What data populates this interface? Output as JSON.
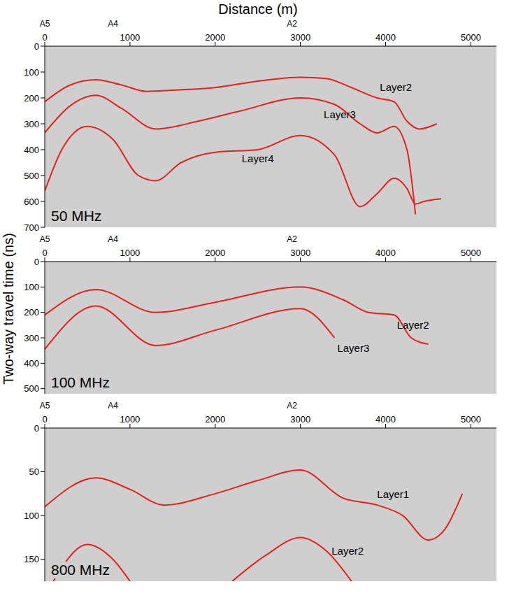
{
  "xlabel": "Distance (m)",
  "ylabel": "Two-way travel time (ns)",
  "chart_data": [
    {
      "type": "line",
      "title": "50 MHz",
      "xlim": [
        0,
        5300
      ],
      "xticks": [
        0,
        1000,
        2000,
        3000,
        4000,
        5000
      ],
      "ylim": [
        0,
        700
      ],
      "yticks": [
        0,
        100,
        200,
        300,
        400,
        500,
        600,
        700
      ],
      "grid": false,
      "stations": {
        "labels": [
          "A5",
          "A4",
          "A2"
        ],
        "x": [
          0,
          800,
          2900
        ]
      },
      "series": [
        {
          "name": "Layer2",
          "color": "#e8201c",
          "x": [
            0,
            300,
            600,
            900,
            1200,
            1500,
            2000,
            2500,
            3000,
            3300,
            3600,
            3900,
            4100,
            4250,
            4400,
            4600
          ],
          "values": [
            215,
            150,
            130,
            150,
            175,
            170,
            160,
            135,
            120,
            125,
            160,
            200,
            215,
            290,
            320,
            300
          ]
        },
        {
          "name": "Layer3",
          "color": "#e8201c",
          "x": [
            0,
            300,
            600,
            900,
            1300,
            1800,
            2300,
            3000,
            3400,
            3700,
            3900,
            4100,
            4250,
            4350
          ],
          "values": [
            335,
            230,
            190,
            240,
            320,
            290,
            250,
            200,
            225,
            300,
            335,
            310,
            400,
            650
          ]
        },
        {
          "name": "Layer4",
          "color": "#e8201c",
          "x": [
            0,
            200,
            500,
            800,
            1100,
            1300,
            1600,
            2000,
            2500,
            3000,
            3400,
            3700,
            3900,
            4100,
            4250,
            4350,
            4450,
            4650
          ],
          "values": [
            560,
            400,
            310,
            360,
            500,
            520,
            450,
            410,
            400,
            345,
            420,
            620,
            570,
            510,
            550,
            610,
            600,
            590
          ]
        }
      ]
    },
    {
      "type": "line",
      "title": "100 MHz",
      "xlim": [
        0,
        5300
      ],
      "xticks": [
        0,
        1000,
        2000,
        3000,
        4000,
        5000
      ],
      "ylim": [
        0,
        520
      ],
      "yticks": [
        0,
        100,
        200,
        300,
        400,
        500
      ],
      "grid": false,
      "stations": {
        "labels": [
          "A5",
          "A4",
          "A2"
        ],
        "x": [
          0,
          800,
          2900
        ]
      },
      "series": [
        {
          "name": "Layer2",
          "color": "#e8201c",
          "x": [
            0,
            600,
            1300,
            2000,
            3000,
            3500,
            3800,
            4100,
            4300,
            4500
          ],
          "values": [
            210,
            110,
            200,
            160,
            100,
            150,
            200,
            210,
            300,
            325
          ]
        },
        {
          "name": "Layer3",
          "color": "#e8201c",
          "x": [
            0,
            600,
            1300,
            2000,
            3000,
            3400
          ],
          "values": [
            345,
            175,
            330,
            270,
            185,
            300
          ]
        }
      ]
    },
    {
      "type": "line",
      "title": "800 MHz",
      "xlim": [
        0,
        5300
      ],
      "xticks": [
        0,
        1000,
        2000,
        3000,
        4000,
        5000
      ],
      "ylim": [
        0,
        175
      ],
      "yticks": [
        0,
        50,
        100,
        150
      ],
      "grid": false,
      "stations": {
        "labels": [
          "A5",
          "A4",
          "A2"
        ],
        "x": [
          0,
          800,
          2900
        ]
      },
      "series": [
        {
          "name": "Layer1",
          "color": "#e8201c",
          "x": [
            0,
            600,
            1000,
            1400,
            2000,
            2500,
            3000,
            3500,
            3900,
            4200,
            4500,
            4700,
            4900
          ],
          "values": [
            90,
            57,
            70,
            88,
            75,
            60,
            48,
            80,
            88,
            100,
            128,
            115,
            75
          ]
        },
        {
          "name": "Layer2",
          "color": "#e8201c",
          "x": [
            100,
            500,
            800,
            1000,
            1600,
            2200,
            2600,
            3000,
            3300,
            3600
          ],
          "values": [
            175,
            133,
            150,
            175,
            null,
            175,
            145,
            125,
            140,
            175
          ]
        }
      ]
    }
  ]
}
